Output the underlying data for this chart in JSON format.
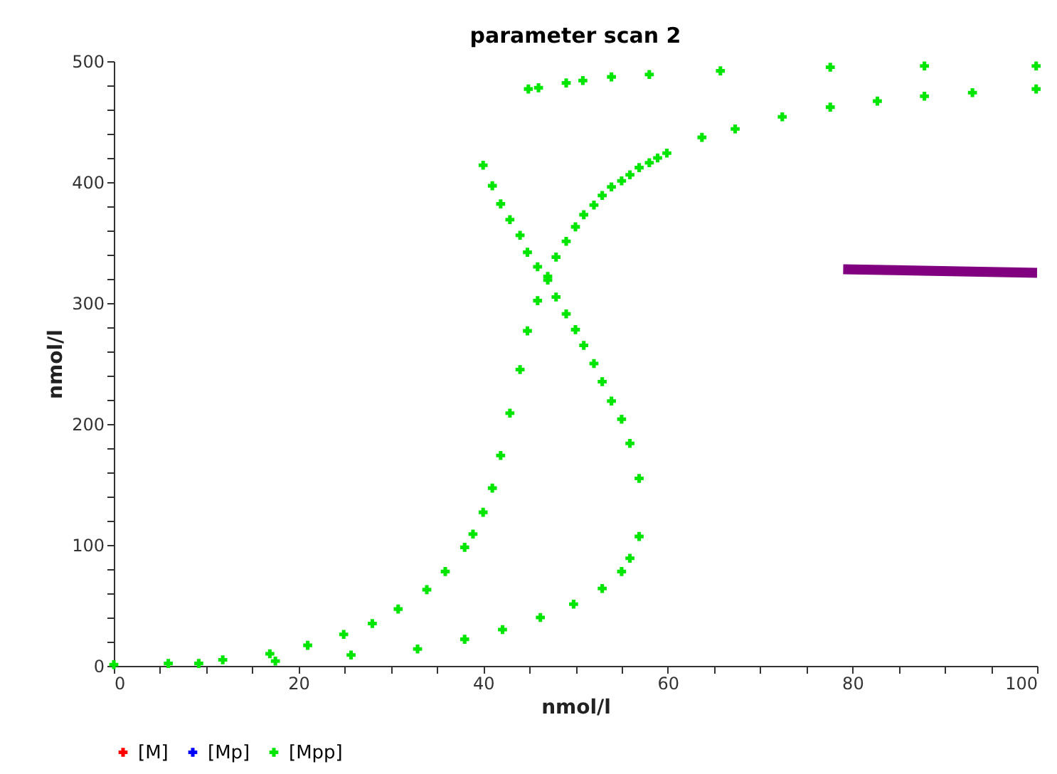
{
  "chart_data": {
    "type": "scatter",
    "title": "parameter scan 2",
    "xlabel": "nmol/l",
    "ylabel": "nmol/l",
    "xlim": [
      0,
      100
    ],
    "ylim": [
      0,
      500
    ],
    "xticks": [
      0,
      {
        "value": 5,
        "label": null
      },
      {
        "value": 10,
        "label": null
      },
      {
        "value": 15,
        "label": null
      },
      20,
      {
        "value": 25,
        "label": null
      },
      {
        "value": 30,
        "label": null
      },
      {
        "value": 35,
        "label": null
      },
      40,
      {
        "value": 45,
        "label": null
      },
      {
        "value": 50,
        "label": null
      },
      {
        "value": 55,
        "label": null
      },
      60,
      {
        "value": 65,
        "label": null
      },
      {
        "value": 70,
        "label": null
      },
      {
        "value": 75,
        "label": null
      },
      80,
      {
        "value": 85,
        "label": null
      },
      {
        "value": 90,
        "label": null
      },
      {
        "value": 95,
        "label": null
      },
      100
    ],
    "yticks": [
      0,
      {
        "value": 20,
        "label": null
      },
      {
        "value": 40,
        "label": null
      },
      {
        "value": 60,
        "label": null
      },
      {
        "value": 80,
        "label": null
      },
      100,
      {
        "value": 120,
        "label": null
      },
      {
        "value": 140,
        "label": null
      },
      {
        "value": 160,
        "label": null
      },
      {
        "value": 180,
        "label": null
      },
      200,
      {
        "value": 220,
        "label": null
      },
      {
        "value": 240,
        "label": null
      },
      {
        "value": 260,
        "label": null
      },
      {
        "value": 280,
        "label": null
      },
      300,
      {
        "value": 320,
        "label": null
      },
      {
        "value": 340,
        "label": null
      },
      {
        "value": 360,
        "label": null
      },
      {
        "value": 380,
        "label": null
      },
      400,
      {
        "value": 420,
        "label": null
      },
      {
        "value": 440,
        "label": null
      },
      {
        "value": 460,
        "label": null
      },
      {
        "value": 480,
        "label": null
      },
      500
    ],
    "grid": false,
    "legend": "bottom",
    "marker": "cross",
    "series": [
      {
        "name": "[M]",
        "color": "#ff0000"
      },
      {
        "name": "[Mp]",
        "color": "#0000ff"
      },
      {
        "name": "[Mpp]",
        "color": "#00e600",
        "x": [
          0,
          5.9,
          11.8,
          16.9,
          21,
          24.9,
          28,
          30.8,
          33.9,
          35.9,
          38,
          38.9,
          40,
          41,
          41.9,
          42.9,
          44,
          44.8,
          45.9,
          47,
          47.9,
          49,
          50,
          50.9,
          52,
          52.9,
          53.9,
          55,
          55.9,
          56.9,
          58,
          58.9,
          59.9,
          63.7,
          67.3,
          72.4,
          77.6,
          82.7,
          87.8,
          93,
          99.9,
          9.2,
          17.5,
          25.7,
          32.9,
          38,
          42.1,
          46.2,
          49.8,
          52.9,
          55,
          55.9,
          56.9,
          40,
          41,
          41.9,
          42.9,
          44,
          44.8,
          45.9,
          47,
          47.9,
          49,
          50,
          50.9,
          52,
          52.9,
          53.9,
          55,
          55.9,
          56.9,
          44.9,
          46,
          49,
          50.8,
          53.9,
          58,
          65.7,
          77.6,
          87.8,
          99.9
        ],
        "values": [
          1,
          2,
          5,
          10,
          17,
          26,
          35,
          47,
          63,
          78,
          98,
          109,
          127,
          147,
          174,
          209,
          245,
          277,
          302,
          319,
          338,
          351,
          363,
          373,
          381,
          389,
          396,
          401,
          406,
          412,
          416,
          420,
          424,
          437,
          444,
          454,
          462,
          467,
          471,
          474,
          477,
          2,
          4,
          9,
          14,
          22,
          30,
          40,
          51,
          64,
          78,
          89,
          107,
          414,
          397,
          382,
          369,
          356,
          342,
          330,
          322,
          305,
          291,
          278,
          265,
          250,
          235,
          219,
          204,
          184,
          155,
          477,
          478,
          482,
          484,
          487,
          489,
          492,
          495,
          496,
          496
        ]
      },
      {
        "type": "line",
        "marker": "none",
        "color": "#800080",
        "x": [
          79,
          100
        ],
        "values": [
          328,
          325
        ]
      }
    ]
  }
}
